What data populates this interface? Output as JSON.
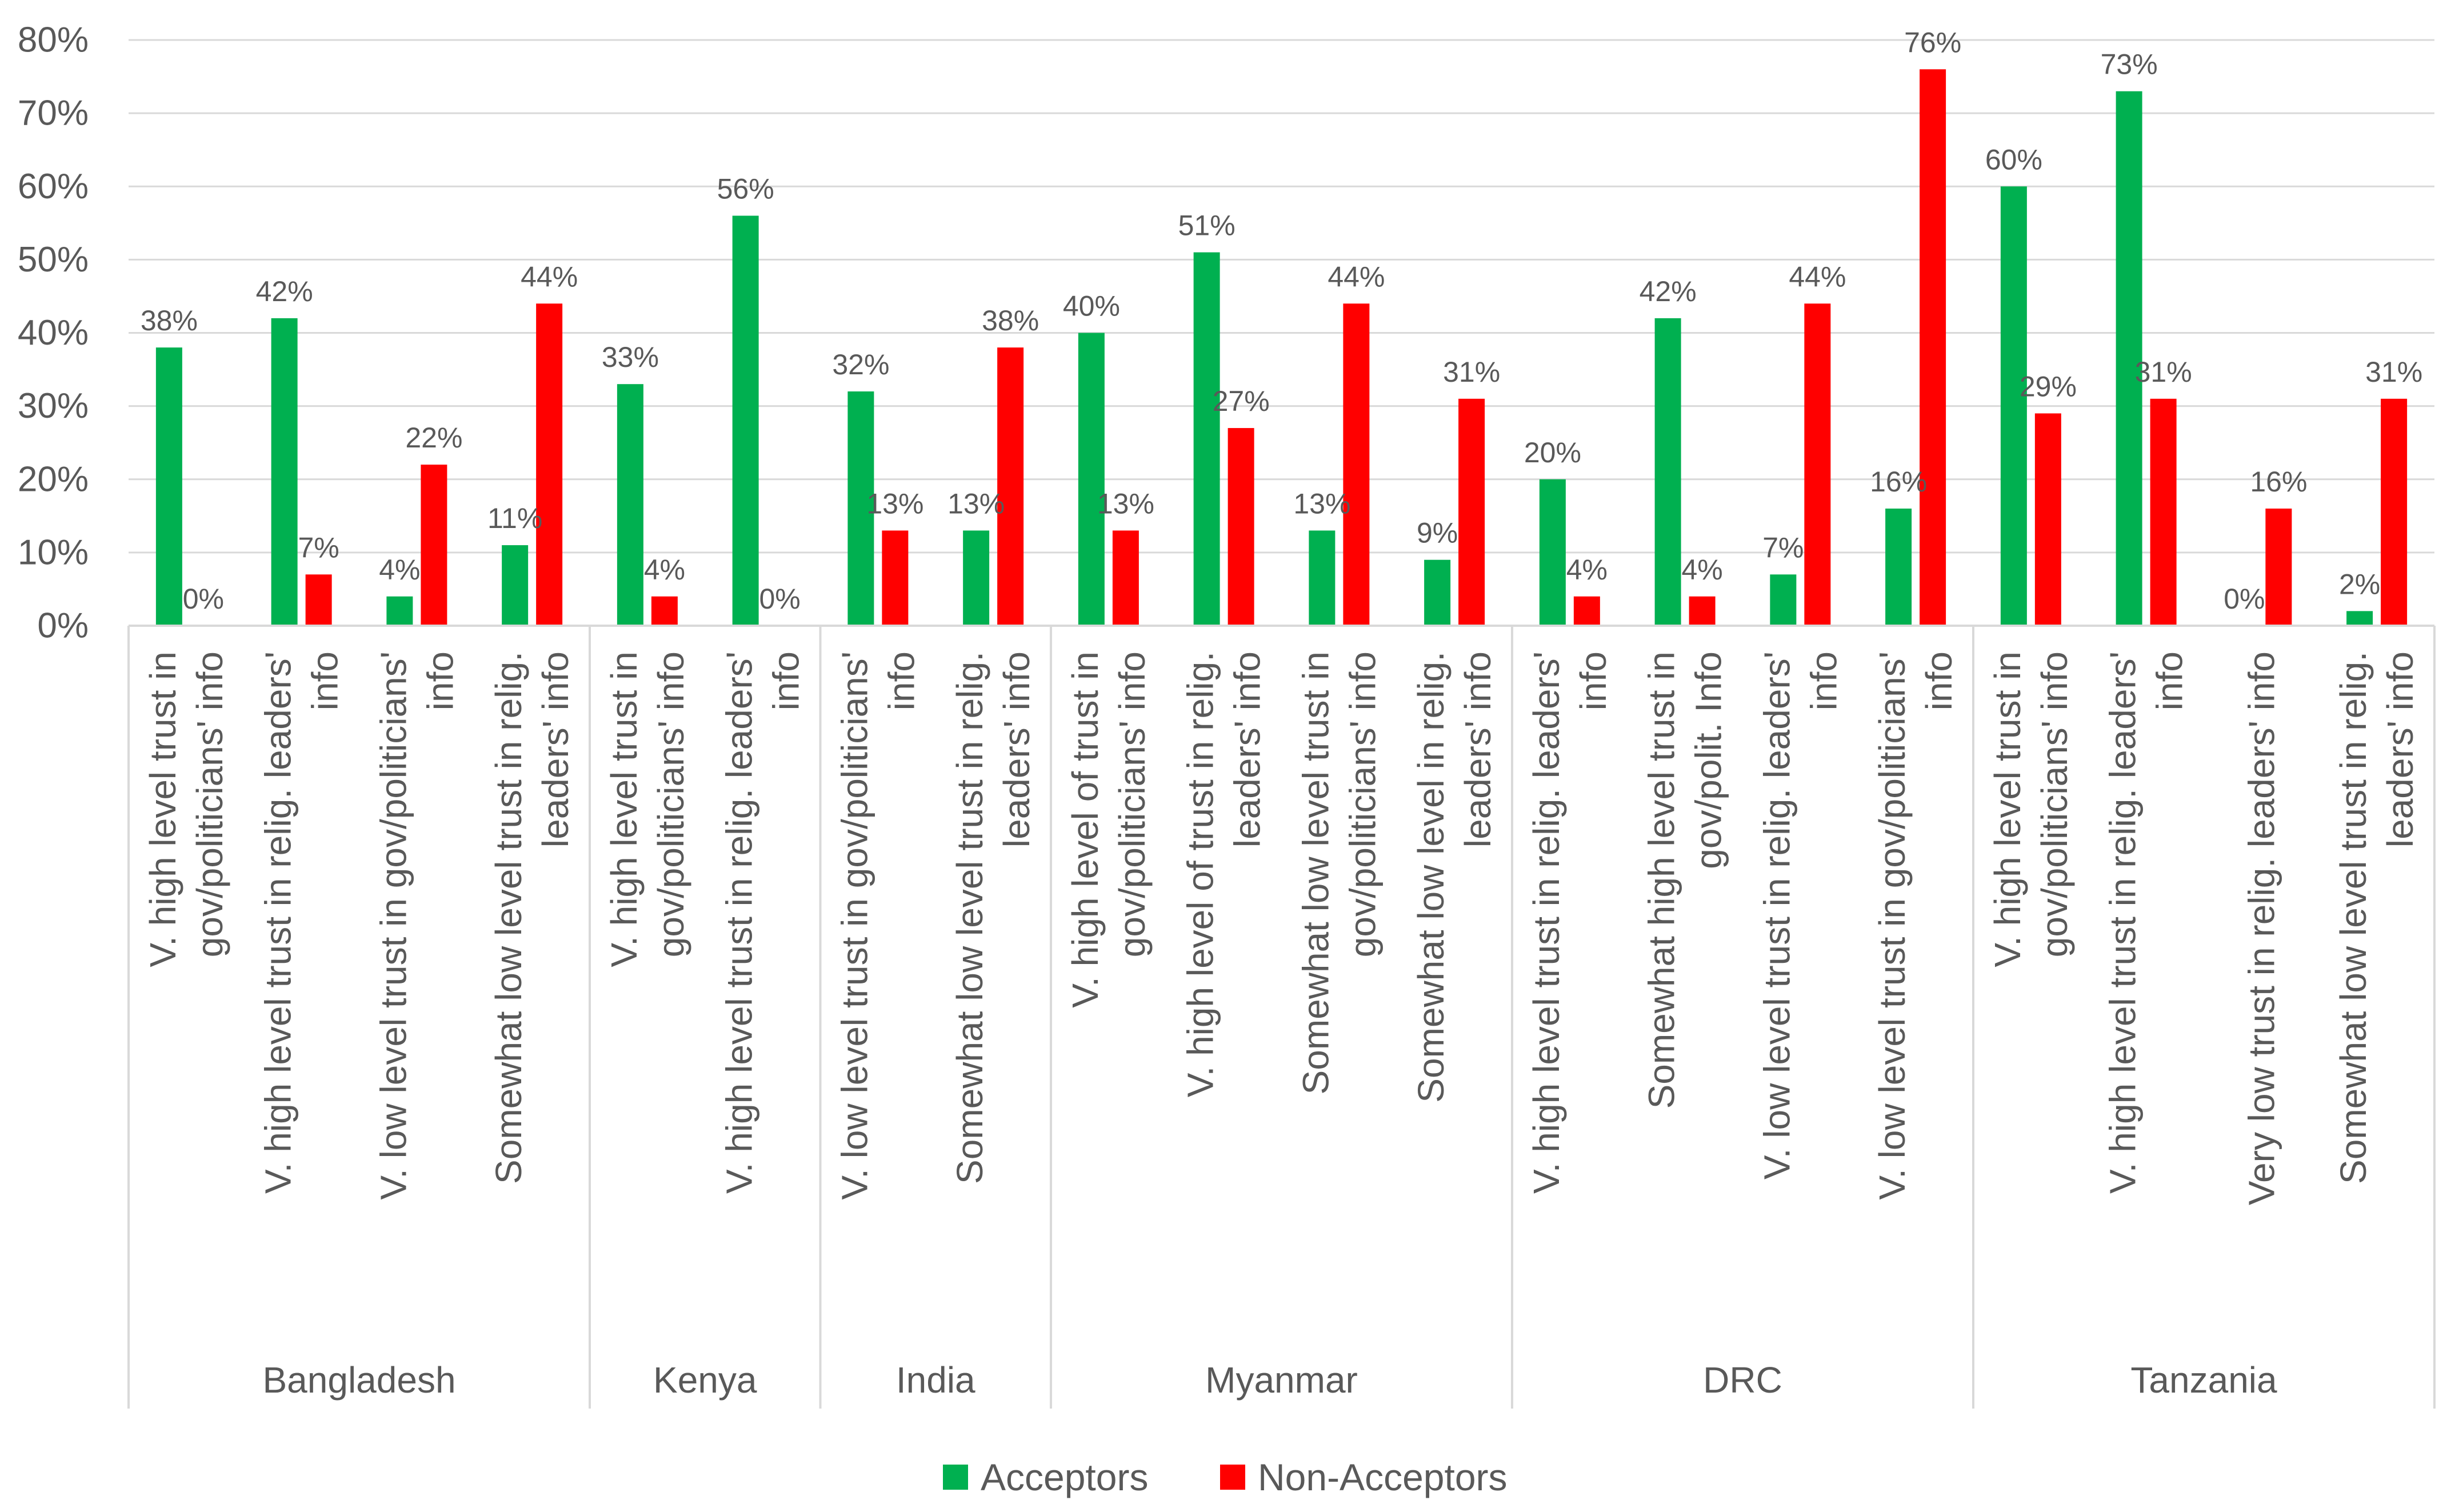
{
  "chart_data": {
    "type": "bar",
    "title": "",
    "xlabel": "",
    "ylabel": "",
    "ylim": [
      0,
      80
    ],
    "y_ticks": [
      "0%",
      "10%",
      "20%",
      "30%",
      "40%",
      "50%",
      "60%",
      "70%",
      "80%"
    ],
    "y_tick_values": [
      0,
      10,
      20,
      30,
      40,
      50,
      60,
      70,
      80
    ],
    "grid": true,
    "legend_position": "bottom-center",
    "colors": {
      "Acceptors": "#00b050",
      "Non-Acceptors": "#ff0000"
    },
    "series": [
      {
        "name": "Acceptors",
        "values": [
          38,
          42,
          4,
          11,
          33,
          56,
          32,
          13,
          40,
          51,
          13,
          9,
          20,
          42,
          7,
          16,
          60,
          73,
          0,
          2
        ]
      },
      {
        "name": "Non-Acceptors",
        "values": [
          0,
          7,
          22,
          44,
          4,
          0,
          13,
          38,
          13,
          27,
          44,
          31,
          4,
          4,
          44,
          76,
          29,
          31,
          16,
          31
        ]
      }
    ],
    "data_labels": {
      "Acceptors": [
        "38%",
        "42%",
        "4%",
        "11%",
        "33%",
        "56%",
        "32%",
        "13%",
        "40%",
        "51%",
        "13%",
        "9%",
        "20%",
        "42%",
        "7%",
        "16%",
        "60%",
        "73%",
        "0%",
        "2%"
      ],
      "Non-Acceptors": [
        "0%",
        "7%",
        "22%",
        "44%",
        "4%",
        "0%",
        "13%",
        "38%",
        "13%",
        "27%",
        "44%",
        "31%",
        "4%",
        "4%",
        "44%",
        "76%",
        "29%",
        "31%",
        "16%",
        "31%"
      ]
    },
    "categories": [
      [
        "V. high level trust in",
        "gov/politicians' info"
      ],
      [
        "V. high level trust in relig. leaders'",
        "info"
      ],
      [
        "V. low level trust in gov/politicians'",
        "info"
      ],
      [
        "Somewhat low level trust in relig.",
        "leaders' info"
      ],
      [
        "V. high level trust in",
        "gov/politicians' info"
      ],
      [
        "V. high level trust in relig. leaders'",
        "info"
      ],
      [
        "V. low level trust in gov/politicians'",
        "info"
      ],
      [
        "Somewhat low level trust in relig.",
        "leaders' info"
      ],
      [
        "V. high level of trust in",
        "gov/politicians' info"
      ],
      [
        "V. high level of trust in relig.",
        "leaders' info"
      ],
      [
        "Somewhat low level trust in",
        "gov/politicians' info"
      ],
      [
        "Somewhat low level in relig.",
        "leaders' info"
      ],
      [
        "V. high level trust in relig. leaders'",
        "info"
      ],
      [
        "Somewhat high level trust in",
        "gov/polit. Info"
      ],
      [
        "V. low level trust in relig. leaders'",
        "info"
      ],
      [
        "V. low level trust in gov/politicians'",
        "info"
      ],
      [
        "V. high level  trust in",
        "gov/politicians' info"
      ],
      [
        "V. high level trust in relig. leaders'",
        "info"
      ],
      [
        "Very low trust in relig. leaders' info"
      ],
      [
        "Somewhat low level trust in relig.",
        "leaders' info"
      ]
    ],
    "groups": [
      {
        "name": "Bangladesh",
        "count": 4
      },
      {
        "name": "Kenya",
        "count": 2
      },
      {
        "name": "India",
        "count": 2
      },
      {
        "name": "Myanmar",
        "count": 4
      },
      {
        "name": "DRC",
        "count": 4
      },
      {
        "name": "Tanzania",
        "count": 4
      }
    ]
  }
}
